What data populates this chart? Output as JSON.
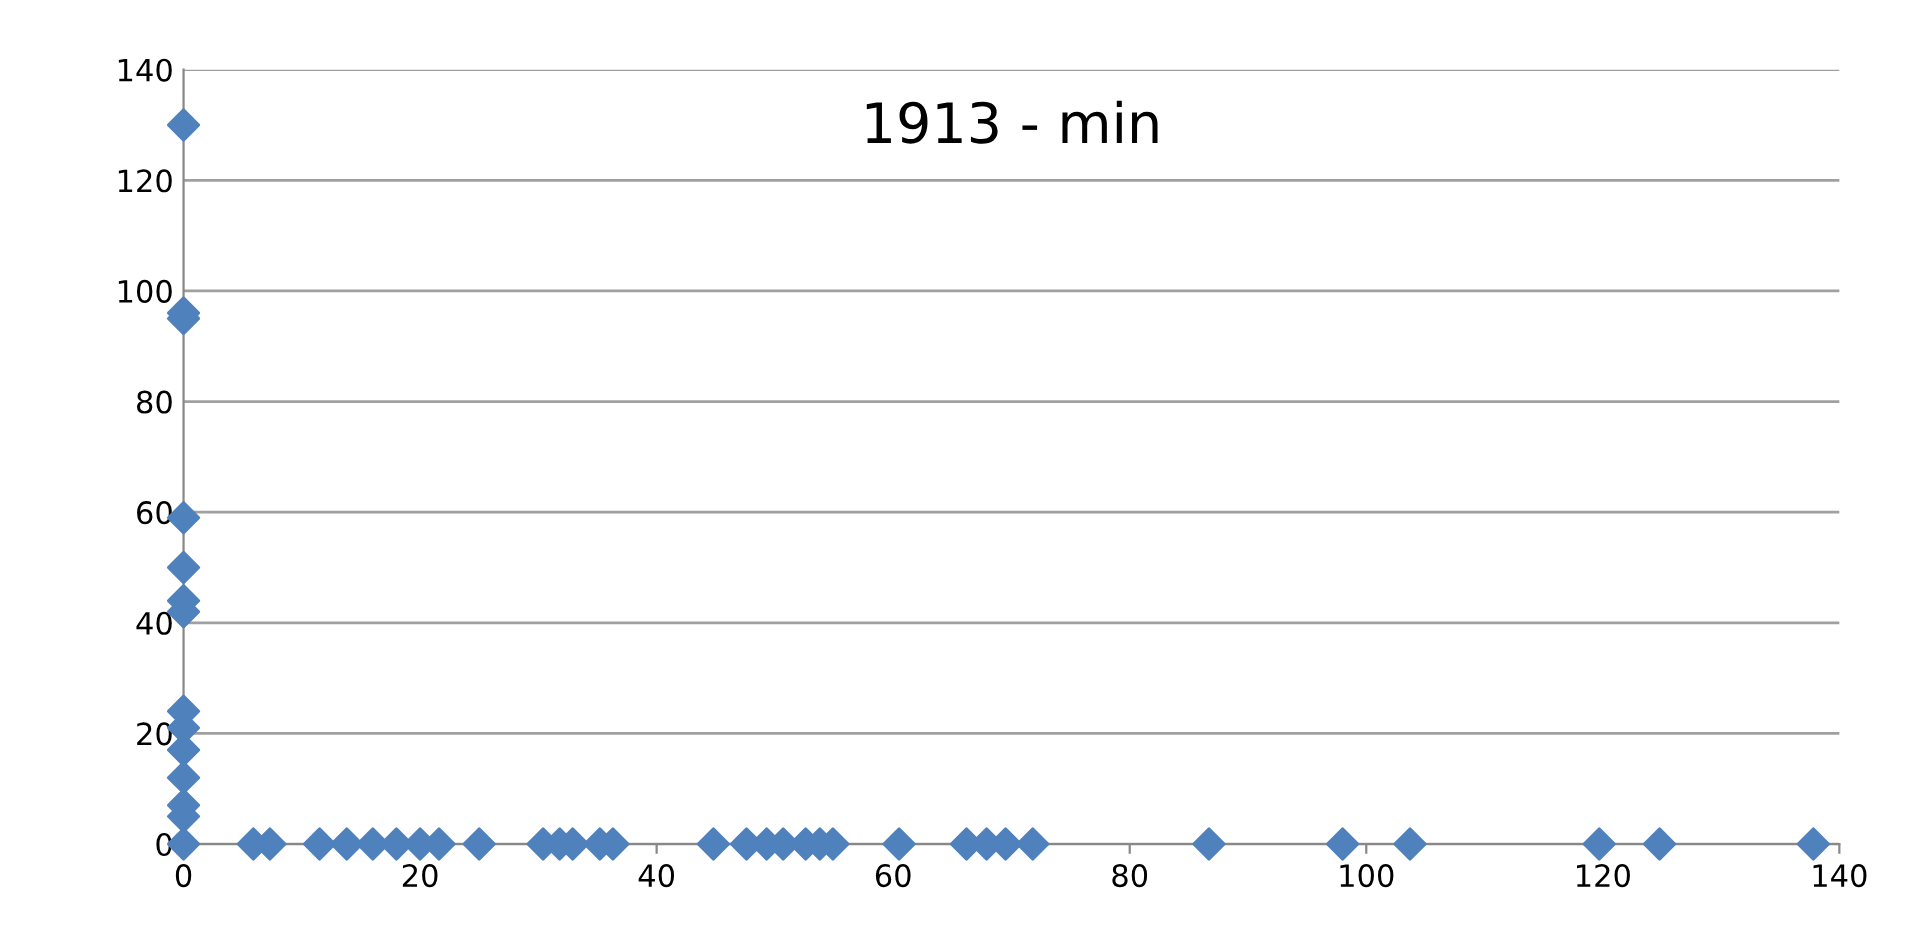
{
  "chart_data": {
    "type": "scatter",
    "title": "1913 - min",
    "series": [
      {
        "color": "#4f81bd",
        "x": [
          0,
          0,
          0,
          0,
          0,
          0,
          0,
          0,
          0,
          0,
          0,
          0,
          0,
          0,
          5.9,
          7.3,
          11.5,
          13.8,
          16,
          18,
          20,
          21.6,
          25,
          30.4,
          31.8,
          32.9,
          35.2,
          36.3,
          44.8,
          47.6,
          49.3,
          50.7,
          52.6,
          53.8,
          54.9,
          60.5,
          66.2,
          67.9,
          69.5,
          71.8,
          86.7,
          98,
          103.7,
          119.7,
          124.8,
          137.8
        ],
        "values": [
          130,
          96,
          95,
          59,
          50,
          44,
          42,
          24,
          21,
          17,
          12,
          7,
          5,
          0,
          0,
          0,
          0,
          0,
          0,
          0,
          0,
          0,
          0,
          0,
          0,
          0,
          0,
          0,
          0,
          0,
          0,
          0,
          0,
          0,
          0,
          0,
          0,
          0,
          0,
          0,
          0,
          0,
          0,
          0,
          0,
          0
        ]
      }
    ],
    "xlim": [
      0,
      140
    ],
    "ylim": [
      0,
      140
    ],
    "xticks": [
      0,
      20,
      40,
      60,
      80,
      100,
      120,
      140
    ],
    "yticks": [
      0,
      20,
      40,
      60,
      80,
      100,
      120,
      140
    ],
    "grid": "y",
    "marker": "diamond",
    "legend": false
  }
}
